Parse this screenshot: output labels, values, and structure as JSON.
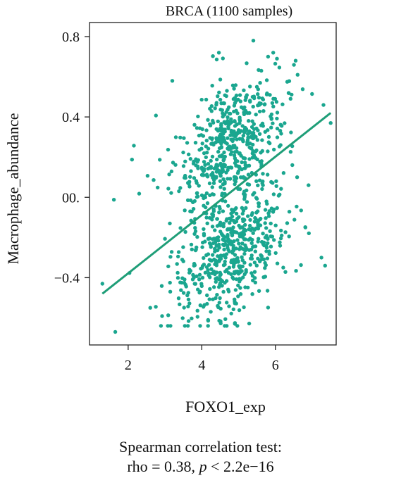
{
  "chart_data": {
    "type": "scatter",
    "title": "BRCA (1100 samples)",
    "xlabel": "FOXO1_exp",
    "ylabel": "Macrophage_abundance",
    "xlim": [
      0.95,
      7.65
    ],
    "ylim": [
      -0.735,
      0.87
    ],
    "xticks": [
      2,
      4,
      6
    ],
    "xtick_labels": [
      "2",
      "4",
      "6"
    ],
    "yticks": [
      -0.4,
      0.0,
      0.4,
      0.8
    ],
    "ytick_labels": [
      "−0.4",
      "00.",
      "0.4",
      "0.8"
    ],
    "grid": false,
    "point_color": "#1aa68f",
    "line_color": "#1f9e78",
    "n_points": 1100,
    "regression_line": {
      "x": [
        1.3,
        7.5
      ],
      "y": [
        -0.48,
        0.42
      ]
    },
    "notable_points": [
      {
        "x": 1.65,
        "y": -0.67
      },
      {
        "x": 1.3,
        "y": -0.43
      },
      {
        "x": 3.2,
        "y": 0.58
      },
      {
        "x": 5.4,
        "y": 0.78
      },
      {
        "x": 5.8,
        "y": 0.7
      },
      {
        "x": 7.5,
        "y": 0.37
      },
      {
        "x": 7.35,
        "y": -0.34
      },
      {
        "x": 7.25,
        "y": -0.3
      },
      {
        "x": 6.9,
        "y": 0.06
      },
      {
        "x": 6.55,
        "y": 0.68
      },
      {
        "x": 2.6,
        "y": -0.55
      },
      {
        "x": 4.9,
        "y": -0.63
      }
    ]
  },
  "caption": {
    "line1": "Spearman correlation test:",
    "line2_prefix": "rho = 0.38, ",
    "line2_p": "p",
    "line2_suffix": " < 2.2e−16"
  }
}
